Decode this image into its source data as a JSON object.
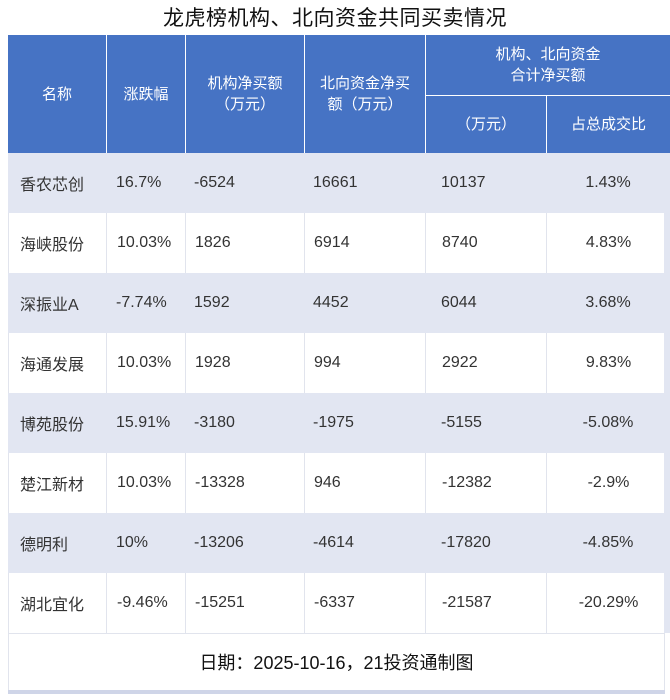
{
  "title": "龙虎榜机构、北向资金共同买卖情况",
  "header": {
    "name": "名称",
    "change": "涨跌幅",
    "inst_line1": "机构净买额",
    "inst_line2": "（万元）",
    "north_line1": "北向资金净买",
    "north_line2": "额（万元）",
    "combined_line1": "机构、北向资金",
    "combined_line2": "合计净买额",
    "combined_unit": "（万元）",
    "combined_ratio": "占总成交比"
  },
  "footer_note": "日期：2025-10-16，21投资通制图",
  "colors": {
    "header_bg": "#4673C4",
    "stripe_bg": "#E2E6F2",
    "row_border": "#E1E4ED",
    "bottom_bar": "#CFD5E8",
    "header_text": "#FFFFFF",
    "body_text": "#333333"
  },
  "chart_data": {
    "type": "table",
    "title": "龙虎榜机构、北向资金共同买卖情况",
    "columns": [
      "名称",
      "涨跌幅",
      "机构净买额（万元）",
      "北向资金净买额（万元）",
      "机构、北向资金合计净买额（万元）",
      "机构、北向资金合计净买额占总成交比"
    ],
    "rows": [
      [
        "香农芯创",
        "16.7%",
        "-6524",
        "16661",
        "10137",
        "1.43%"
      ],
      [
        "海峡股份",
        "10.03%",
        "1826",
        "6914",
        "8740",
        "4.83%"
      ],
      [
        "深振业A",
        "-7.74%",
        "1592",
        "4452",
        "6044",
        "3.68%"
      ],
      [
        "海通发展",
        "10.03%",
        "1928",
        "994",
        "2922",
        "9.83%"
      ],
      [
        "博苑股份",
        "15.91%",
        "-3180",
        "-1975",
        "-5155",
        "-5.08%"
      ],
      [
        "楚江新材",
        "10.03%",
        "-13328",
        "946",
        "-12382",
        "-2.9%"
      ],
      [
        "德明利",
        "10%",
        "-13206",
        "-4614",
        "-17820",
        "-4.85%"
      ],
      [
        "湖北宜化",
        "-9.46%",
        "-15251",
        "-6337",
        "-21587",
        "-20.29%"
      ]
    ],
    "footer_note": "日期：2025-10-16，21投资通制图"
  }
}
